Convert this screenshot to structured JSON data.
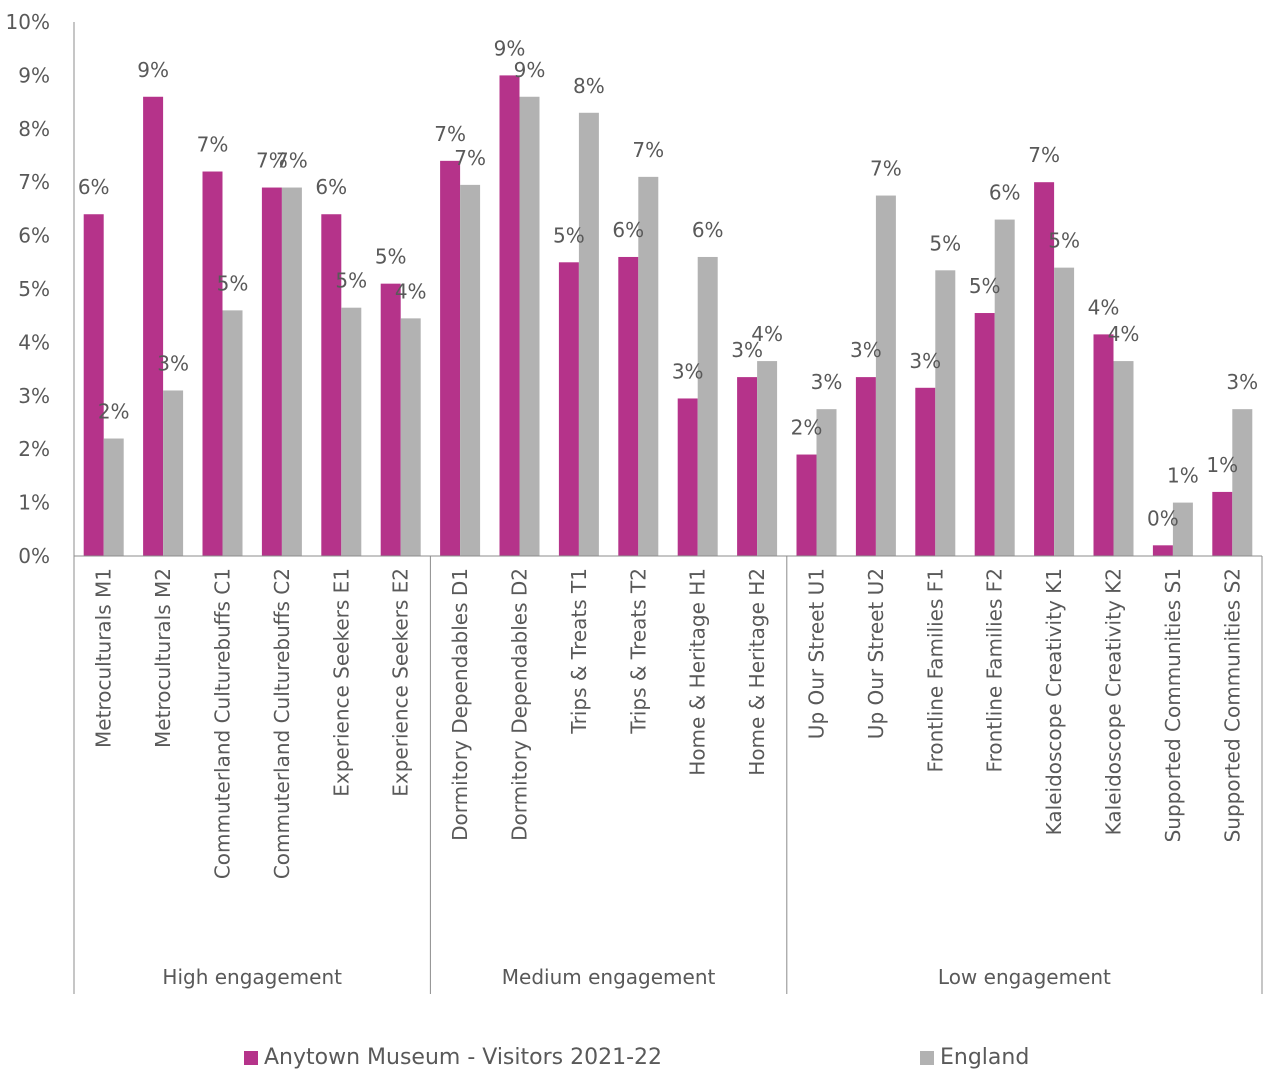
{
  "chart_data": {
    "type": "bar",
    "title": "",
    "xlabel": "",
    "ylabel": "",
    "ylim": [
      0,
      10
    ],
    "y_ticks": [
      "0%",
      "1%",
      "2%",
      "3%",
      "4%",
      "5%",
      "6%",
      "7%",
      "8%",
      "9%",
      "10%"
    ],
    "grid": false,
    "legend_position": "bottom",
    "categories": [
      "Metroculturals M1",
      "Metroculturals M2",
      "Commuterland Culturebuffs C1",
      "Commuterland Culturebuffs C2",
      "Experience Seekers E1",
      "Experience Seekers E2",
      "Dormitory Dependables D1",
      "Dormitory Dependables D2",
      "Trips & Treats T1",
      "Trips & Treats T2",
      "Home & Heritage H1",
      "Home & Heritage H2",
      "Up Our Street U1",
      "Up Our Street U2",
      "Frontline Families F1",
      "Frontline Families F2",
      "Kaleidoscope Creativity K1",
      "Kaleidoscope Creativity K2",
      "Supported Communities S1",
      "Supported Communities S2"
    ],
    "groups": [
      {
        "label": "High engagement",
        "start": 0,
        "count": 6
      },
      {
        "label": "Medium engagement",
        "start": 6,
        "count": 6
      },
      {
        "label": "Low engagement",
        "start": 12,
        "count": 8
      }
    ],
    "series": [
      {
        "name": "Anytown Museum - Visitors 2021-22",
        "color": "#B5338A",
        "values": [
          6.4,
          8.6,
          7.2,
          6.9,
          6.4,
          5.1,
          7.4,
          9.0,
          5.5,
          5.6,
          2.95,
          3.35,
          1.9,
          3.35,
          3.15,
          4.55,
          7.0,
          4.15,
          0.2,
          1.2
        ],
        "labels": [
          "6%",
          "9%",
          "7%",
          "7%",
          "6%",
          "5%",
          "7%",
          "9%",
          "5%",
          "6%",
          "3%",
          "3%",
          "2%",
          "3%",
          "3%",
          "5%",
          "7%",
          "4%",
          "0%",
          "1%"
        ]
      },
      {
        "name": "England",
        "color": "#B2B2B2",
        "values": [
          2.2,
          3.1,
          4.6,
          6.9,
          4.65,
          4.45,
          6.95,
          8.6,
          8.3,
          7.1,
          5.6,
          3.65,
          2.75,
          6.75,
          5.35,
          6.3,
          5.4,
          3.65,
          1.0,
          2.75
        ],
        "labels": [
          "2%",
          "3%",
          "5%",
          "7%",
          "5%",
          "4%",
          "7%",
          "9%",
          "8%",
          "7%",
          "6%",
          "4%",
          "3%",
          "7%",
          "5%",
          "6%",
          "5%",
          "4%",
          "1%",
          "3%"
        ]
      }
    ]
  }
}
